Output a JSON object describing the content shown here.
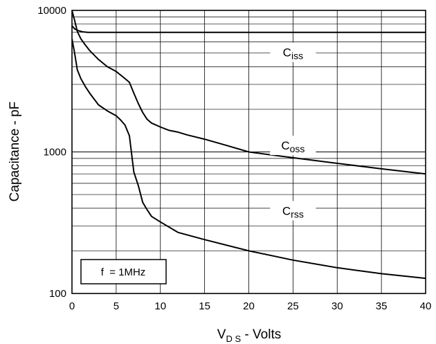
{
  "chart_data": {
    "type": "line",
    "title": "",
    "xlabel": {
      "main": "V",
      "sub": "D S",
      "suffix": " - Volts"
    },
    "ylabel": "Capacitance - pF",
    "y_scale": "log",
    "xlim": [
      0,
      40
    ],
    "ylim": [
      100,
      10000
    ],
    "x_ticks": [
      "0",
      "5",
      "10",
      "15",
      "20",
      "25",
      "30",
      "35",
      "40"
    ],
    "y_ticks": [
      "100",
      "1000",
      "10000"
    ],
    "grid": true,
    "annotation": "f  = 1MHz",
    "series": [
      {
        "name": "Ciss",
        "label_main": "C",
        "label_sub": "iss",
        "x": [
          0,
          0.3,
          0.7,
          1.2,
          1.8,
          3,
          5,
          10,
          15,
          20,
          25,
          30,
          35,
          40
        ],
        "y": [
          7800,
          7400,
          7200,
          7050,
          7000,
          7000,
          7000,
          7000,
          7000,
          7000,
          7000,
          7000,
          7000,
          7000
        ]
      },
      {
        "name": "Coss",
        "label_main": "C",
        "label_sub": "oss",
        "x": [
          0,
          0.3,
          0.6,
          1,
          1.5,
          2,
          3,
          4,
          5,
          6,
          6.5,
          7,
          7.5,
          8,
          8.5,
          9,
          10,
          11,
          12,
          13,
          15,
          17.5,
          20,
          25,
          30,
          35,
          40
        ],
        "y": [
          10000,
          8500,
          7100,
          6300,
          5700,
          5200,
          4500,
          4000,
          3700,
          3300,
          3100,
          2600,
          2200,
          1900,
          1700,
          1600,
          1500,
          1420,
          1380,
          1320,
          1230,
          1110,
          1000,
          910,
          830,
          760,
          700
        ]
      },
      {
        "name": "Crss",
        "label_main": "C",
        "label_sub": "rss",
        "x": [
          0,
          0.3,
          0.6,
          1,
          1.5,
          2,
          3,
          4,
          5,
          5.5,
          6,
          6.5,
          7,
          7.5,
          8,
          8.5,
          9,
          10,
          12,
          15,
          20,
          25,
          30,
          35,
          40
        ],
        "y": [
          6300,
          5000,
          3800,
          3300,
          2900,
          2600,
          2150,
          1950,
          1800,
          1680,
          1550,
          1300,
          720,
          580,
          440,
          390,
          350,
          320,
          270,
          240,
          200,
          172,
          152,
          138,
          128
        ]
      }
    ]
  }
}
